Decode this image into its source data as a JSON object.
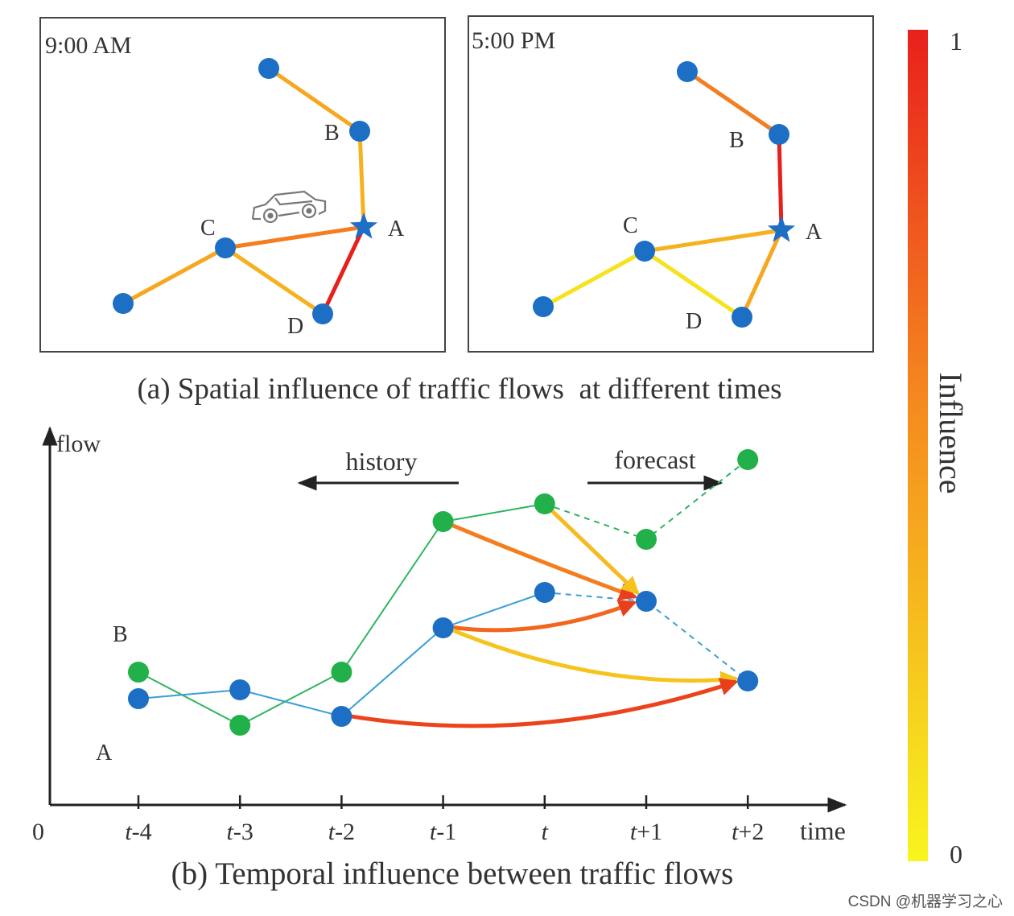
{
  "panel_a": {
    "morning": {
      "time_label": "9:00 AM",
      "labels": {
        "A": "A",
        "B": "B",
        "C": "C",
        "D": "D"
      },
      "edge_influence": {
        "top_B": 0.4,
        "B_A": 0.35,
        "C_A": 0.6,
        "A_D": 1.0,
        "leftC_C": 0.4,
        "C_D": 0.35
      }
    },
    "evening": {
      "time_label": "5:00 PM",
      "labels": {
        "A": "A",
        "B": "B",
        "C": "C",
        "D": "D"
      },
      "edge_influence": {
        "top_B": 0.6,
        "B_A": 1.0,
        "C_A": 0.35,
        "A_D": 0.4,
        "leftC_C": 0.1,
        "C_D": 0.1
      }
    },
    "caption": "(a) Spatial influence of traffic flows  at different times"
  },
  "panel_b": {
    "y_axis_label": "flow",
    "x_axis_label": "time",
    "origin_label": "0",
    "ticks": [
      {
        "prefix": "t",
        "suffix": "-4"
      },
      {
        "prefix": "t",
        "suffix": "-3"
      },
      {
        "prefix": "t",
        "suffix": "-2"
      },
      {
        "prefix": "t",
        "suffix": "-1"
      },
      {
        "prefix": "t",
        "suffix": ""
      },
      {
        "prefix": "t",
        "suffix": "+1"
      },
      {
        "prefix": "t",
        "suffix": "+2"
      }
    ],
    "history_label": "history",
    "forecast_label": "forecast",
    "series_B_label": "B",
    "series_A_label": "A",
    "caption": "(b) Temporal influence between traffic flows",
    "series": [
      {
        "name": "B",
        "color": "#22b04a",
        "line_color": "#2db55d",
        "observed": [
          0.75,
          0.45,
          0.75,
          1.6,
          1.7
        ],
        "forecast": [
          1.5,
          1.95
        ]
      },
      {
        "name": "A",
        "color": "#1c6fc4",
        "line_color": "#3a9fd6",
        "observed": [
          0.6,
          0.65,
          0.5,
          1.0,
          1.2
        ],
        "forecast": [
          1.15,
          0.7
        ]
      }
    ],
    "influence_arrows": [
      {
        "from": "B t-1",
        "to": "A t+1",
        "influence": 0.6
      },
      {
        "from": "B t",
        "to": "A t+1",
        "influence": 0.3
      },
      {
        "from": "A t-1",
        "to": "A t+1",
        "influence": 0.7
      },
      {
        "from": "A t-1",
        "to": "A t+2",
        "influence": 0.25
      },
      {
        "from": "A t-2",
        "to": "A t+2",
        "influence": 0.85
      }
    ]
  },
  "colorbar": {
    "max_label": "1",
    "min_label": "0",
    "title": "Influence",
    "color_high": "#e8201c",
    "color_mid": "#f58a1f",
    "color_low": "#f7f51e"
  },
  "watermark": "CSDN @机器学习之心",
  "colors": {
    "node": "#1c6fc4",
    "node_green": "#22b04a",
    "frame": "#444444",
    "axis": "#222222"
  }
}
